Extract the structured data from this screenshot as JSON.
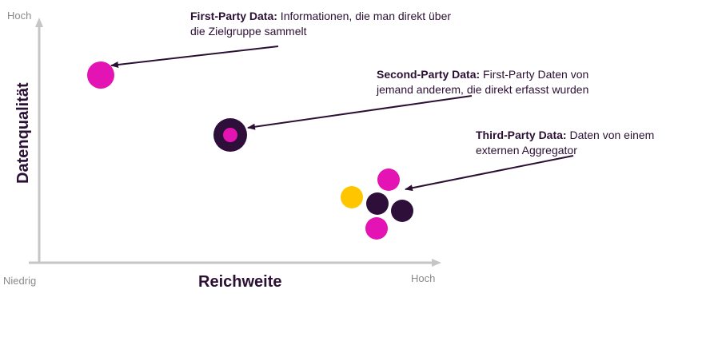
{
  "axes": {
    "y_top_label": "Hoch",
    "y_title": "Datenqualität",
    "x_left_label": "Niedrig",
    "x_title": "Reichweite",
    "x_right_label": "Hoch"
  },
  "annotations": {
    "first_party": {
      "title": "First-Party Data:",
      "line1": " Informationen, die man direkt über",
      "line2": "die Zielgruppe sammelt"
    },
    "second_party": {
      "title": "Second-Party Data:",
      "line1": " First-Party Daten von",
      "line2": "jemand anderem, die direkt erfasst wurden"
    },
    "third_party": {
      "title": "Third-Party Data:",
      "line1": " Daten von einem",
      "line2": "externen Aggregator"
    }
  },
  "colors": {
    "magenta": "#e313b4",
    "dark_purple": "#2d0f3a",
    "yellow": "#ffc600",
    "axis": "#c6c6c6",
    "arrow": "#2b1034"
  }
}
